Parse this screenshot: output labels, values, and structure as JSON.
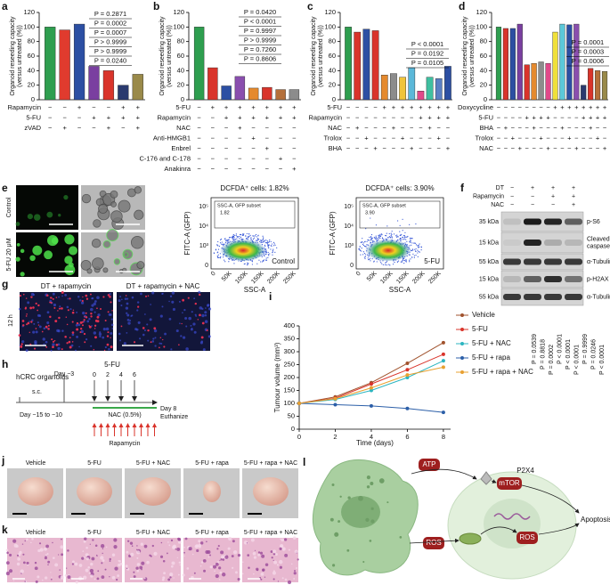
{
  "panels": {
    "a": {
      "letter": "a",
      "y_label": [
        "Organoid reseeding capacity",
        "(versus untreated (%))"
      ],
      "ylim": [
        0,
        120
      ],
      "yticks": [
        0,
        20,
        40,
        60,
        80,
        100,
        120
      ],
      "values": [
        100,
        96,
        104,
        46,
        40,
        20,
        35
      ],
      "colors": [
        "#2e9e4f",
        "#e03b2e",
        "#2c4fa3",
        "#7a3fa0",
        "#d9342b",
        "#2a3a6e",
        "#9a8a4a"
      ],
      "rows": [
        {
          "name": "Rapamycin",
          "signs": [
            "−",
            "−",
            "+",
            "−",
            "−",
            "+",
            "+"
          ]
        },
        {
          "name": "5-FU",
          "signs": [
            "−",
            "−",
            "−",
            "+",
            "+",
            "+",
            "+"
          ]
        },
        {
          "name": "zVAD",
          "signs": [
            "−",
            "+",
            "−",
            "−",
            "+",
            "−",
            "+"
          ]
        }
      ],
      "p_values": [
        "P = 0.2871",
        "P = 0.0002",
        "P = 0.0007",
        "P > 0.9999",
        "P > 0.9999",
        "P = 0.0240"
      ]
    },
    "b": {
      "letter": "b",
      "y_label": [
        "Organoid reseeding capacity",
        "(versus untreated (%))"
      ],
      "ylim": [
        0,
        120
      ],
      "yticks": [
        0,
        20,
        40,
        60,
        80,
        100,
        120
      ],
      "values": [
        100,
        44,
        19,
        32,
        16,
        17,
        14,
        14
      ],
      "colors": [
        "#2e9e4f",
        "#d9342b",
        "#2c4fa3",
        "#8a4fae",
        "#e58a2e",
        "#d9342b",
        "#b5703a",
        "#8c8c8c"
      ],
      "rows": [
        {
          "name": "5-FU",
          "signs": [
            "−",
            "+",
            "+",
            "+",
            "+",
            "+",
            "+",
            "+"
          ]
        },
        {
          "name": "Rapamycin",
          "signs": [
            "−",
            "−",
            "+",
            "+",
            "+",
            "+",
            "+",
            "+"
          ]
        },
        {
          "name": "NAC",
          "signs": [
            "−",
            "−",
            "−",
            "+",
            "−",
            "−",
            "−",
            "−"
          ]
        },
        {
          "name": "Anti-HMGB1",
          "signs": [
            "−",
            "−",
            "−",
            "−",
            "+",
            "−",
            "−",
            "−"
          ]
        },
        {
          "name": "Enbrel",
          "signs": [
            "−",
            "−",
            "−",
            "−",
            "−",
            "+",
            "−",
            "−"
          ]
        },
        {
          "name": "C-176 and C-178",
          "signs": [
            "−",
            "−",
            "−",
            "−",
            "−",
            "−",
            "+",
            "−"
          ]
        },
        {
          "name": "Anakinra",
          "signs": [
            "−",
            "−",
            "−",
            "−",
            "−",
            "−",
            "−",
            "+"
          ]
        }
      ],
      "p_values": [
        "P = 0.0420",
        "P < 0.0001",
        "P = 0.9997",
        "P > 0.9999",
        "P = 0.7260",
        "P = 0.8606"
      ]
    },
    "c": {
      "letter": "c",
      "y_label": [
        "Organoid reseeding capacity",
        "(versus untreated (%))"
      ],
      "ylim": [
        0,
        120
      ],
      "yticks": [
        0,
        20,
        40,
        60,
        80,
        100,
        120
      ],
      "values": [
        100,
        93,
        97,
        95,
        34,
        36,
        31,
        44,
        12,
        31,
        29,
        46
      ],
      "colors": [
        "#2e9e4f",
        "#d9342b",
        "#2c4fa3",
        "#d9342b",
        "#e58a2e",
        "#8c8c8c",
        "#f0c43a",
        "#5bb8d9",
        "#e0498a",
        "#3fbfa0",
        "#5a7fc4",
        "#2c4fa3"
      ],
      "rows": [
        {
          "name": "5-FU",
          "signs": [
            "−",
            "−",
            "−",
            "−",
            "+",
            "+",
            "+",
            "+",
            "+",
            "+",
            "+",
            "+"
          ]
        },
        {
          "name": "Rapamycin",
          "signs": [
            "−",
            "−",
            "−",
            "−",
            "−",
            "−",
            "−",
            "−",
            "+",
            "+",
            "+",
            "+"
          ]
        },
        {
          "name": "NAC",
          "signs": [
            "−",
            "+",
            "−",
            "−",
            "−",
            "+",
            "−",
            "−",
            "−",
            "+",
            "−",
            "−"
          ]
        },
        {
          "name": "Trolox",
          "signs": [
            "−",
            "−",
            "+",
            "−",
            "−",
            "−",
            "+",
            "−",
            "−",
            "−",
            "+",
            "−"
          ]
        },
        {
          "name": "BHA",
          "signs": [
            "−",
            "−",
            "−",
            "+",
            "−",
            "−",
            "−",
            "+",
            "−",
            "−",
            "−",
            "+"
          ]
        }
      ],
      "p_values": [
        "P < 0.0001",
        "P = 0.0192",
        "P = 0.0105"
      ]
    },
    "d": {
      "letter": "d",
      "y_label": [
        "Organoid reseeding capacity",
        "(versus untreated (%))"
      ],
      "ylim": [
        0,
        120
      ],
      "yticks": [
        0,
        20,
        40,
        60,
        80,
        100,
        120
      ],
      "values": [
        100,
        98,
        98,
        104,
        48,
        50,
        52,
        50,
        93,
        104,
        103,
        104,
        20,
        43,
        40,
        39
      ],
      "colors": [
        "#2e9e4f",
        "#d9342b",
        "#2c4fa3",
        "#7a3fa0",
        "#d9342b",
        "#e58a2e",
        "#8c8c8c",
        "#e0498a",
        "#f0e03a",
        "#5bc8d9",
        "#2c4fa3",
        "#8a4fae",
        "#2a3a6e",
        "#d9342b",
        "#b5703a",
        "#9a8a4a"
      ],
      "rows": [
        {
          "name": "Doxycycline",
          "signs": [
            "−",
            "−",
            "−",
            "−",
            "−",
            "−",
            "−",
            "−",
            "+",
            "+",
            "+",
            "+",
            "+",
            "+",
            "+",
            "+"
          ]
        },
        {
          "name": "5-FU",
          "signs": [
            "−",
            "−",
            "−",
            "−",
            "+",
            "+",
            "+",
            "+",
            "−",
            "−",
            "−",
            "−",
            "+",
            "+",
            "+",
            "+"
          ]
        },
        {
          "name": "BHA",
          "signs": [
            "−",
            "+",
            "−",
            "−",
            "−",
            "+",
            "−",
            "−",
            "−",
            "+",
            "−",
            "−",
            "−",
            "+",
            "−",
            "−"
          ]
        },
        {
          "name": "Trolox",
          "signs": [
            "−",
            "−",
            "+",
            "−",
            "−",
            "−",
            "+",
            "−",
            "−",
            "−",
            "+",
            "−",
            "−",
            "−",
            "+",
            "−"
          ]
        },
        {
          "name": "NAC",
          "signs": [
            "−",
            "−",
            "−",
            "+",
            "−",
            "−",
            "−",
            "+",
            "−",
            "−",
            "−",
            "+",
            "−",
            "−",
            "−",
            "+"
          ]
        }
      ],
      "p_values": [
        "P = 0.0001",
        "P = 0.0003",
        "P = 0.0006"
      ]
    },
    "e": {
      "letter": "e",
      "row_labels": [
        "Control",
        "5-FU 20 μM"
      ],
      "flow": [
        {
          "title": "DCFDA⁺ cells: 1.82%",
          "gate": "SSC-A, GFP subset",
          "gate_value": "1.82",
          "sample": "Control"
        },
        {
          "title": "DCFDA⁺ cells: 3.90%",
          "gate": "SSC-A, GFP subset",
          "gate_value": "3.90",
          "sample": "5-FU"
        }
      ],
      "flow_y_label": "FITC-A (GFP)",
      "flow_x_label": "SSC-A",
      "flow_y_ticks": [
        "10⁵",
        "10⁴",
        "10³",
        "0"
      ],
      "flow_x_ticks": [
        "0",
        "50K",
        "100K",
        "150K",
        "200K",
        "250K"
      ]
    },
    "f": {
      "letter": "f",
      "header_rows": [
        {
          "name": "DT",
          "signs": [
            "−",
            "+",
            "+",
            "+"
          ]
        },
        {
          "name": "Rapamycin",
          "signs": [
            "−",
            "−",
            "+",
            "+"
          ]
        },
        {
          "name": "NAC",
          "signs": [
            "−",
            "−",
            "−",
            "+"
          ]
        }
      ],
      "blots": [
        {
          "kda": "35 kDa",
          "label": [
            "p-S6"
          ]
        },
        {
          "kda": "15 kDa",
          "label": [
            "Cleaved",
            "caspase 3"
          ]
        },
        {
          "kda": "55 kDa",
          "label": [
            "α-Tubulin"
          ]
        },
        {
          "kda": "15 kDa",
          "label": [
            "p-H2AX"
          ]
        },
        {
          "kda": "55 kDa",
          "label": [
            "α-Tubulin"
          ]
        }
      ]
    },
    "g": {
      "letter": "g",
      "titles": [
        "DT + rapamycin",
        "DT + rapamycin + NAC"
      ],
      "row_label": "12 h"
    },
    "h": {
      "letter": "h",
      "organoids": "hCRC organoids",
      "sc": "s.c.",
      "day_minus3": "Day −3",
      "drug": "5-FU",
      "days": [
        "0",
        "2",
        "4",
        "6"
      ],
      "day_start": "Day −15 to −10",
      "nac": "NAC (0.5%)",
      "rapamycin": "Rapamycin",
      "day_end": "Day 8",
      "euthanize": "Euthanize"
    },
    "i": {
      "letter": "i",
      "type": "line",
      "y_label": "Tumour volume (mm³)",
      "x_label": "Time (days)",
      "x": [
        0,
        2,
        4,
        6,
        8
      ],
      "xlim": [
        0,
        8.4
      ],
      "xticks": [
        0,
        2,
        4,
        6,
        8
      ],
      "ylim": [
        0,
        400
      ],
      "yticks": [
        0,
        50,
        100,
        150,
        200,
        250,
        300,
        350,
        400
      ],
      "series": [
        {
          "name": "Vehicle",
          "color": "#a0522d",
          "values": [
            100,
            125,
            180,
            255,
            335
          ]
        },
        {
          "name": "5-FU",
          "color": "#d9342b",
          "values": [
            100,
            120,
            175,
            230,
            290
          ]
        },
        {
          "name": "5-FU + NAC",
          "color": "#2bb5c0",
          "values": [
            100,
            115,
            150,
            200,
            265
          ]
        },
        {
          "name": "5-FU + rapa",
          "color": "#2c5fa8",
          "values": [
            100,
            95,
            90,
            80,
            65
          ]
        },
        {
          "name": "5-FU + rapa + NAC",
          "color": "#e8a030",
          "values": [
            100,
            118,
            160,
            210,
            240
          ]
        }
      ],
      "p_values": [
        "P = 0.0539",
        "P = 0.8818",
        "P = 0.0002",
        "P < 0.0001",
        "P < 0.0001",
        "P < 0.0001",
        "P = 0.9999",
        "P = 0.0246",
        "P < 0.0001"
      ]
    },
    "j": {
      "letter": "j",
      "labels": [
        "Vehicle",
        "5-FU",
        "5-FU + NAC",
        "5-FU + rapa",
        "5-FU + rapa + NAC"
      ]
    },
    "k": {
      "letter": "k",
      "labels": [
        "Vehicle",
        "5-FU",
        "5-FU + NAC",
        "5-FU + rapa",
        "5-FU + rapa + NAC"
      ]
    },
    "l": {
      "letter": "l",
      "atp": "ATP",
      "p2x4": "P2X4",
      "mtor": "mTOR",
      "ros1": "ROS",
      "ros2": "ROS",
      "apoptosis": "Apoptosis"
    }
  }
}
